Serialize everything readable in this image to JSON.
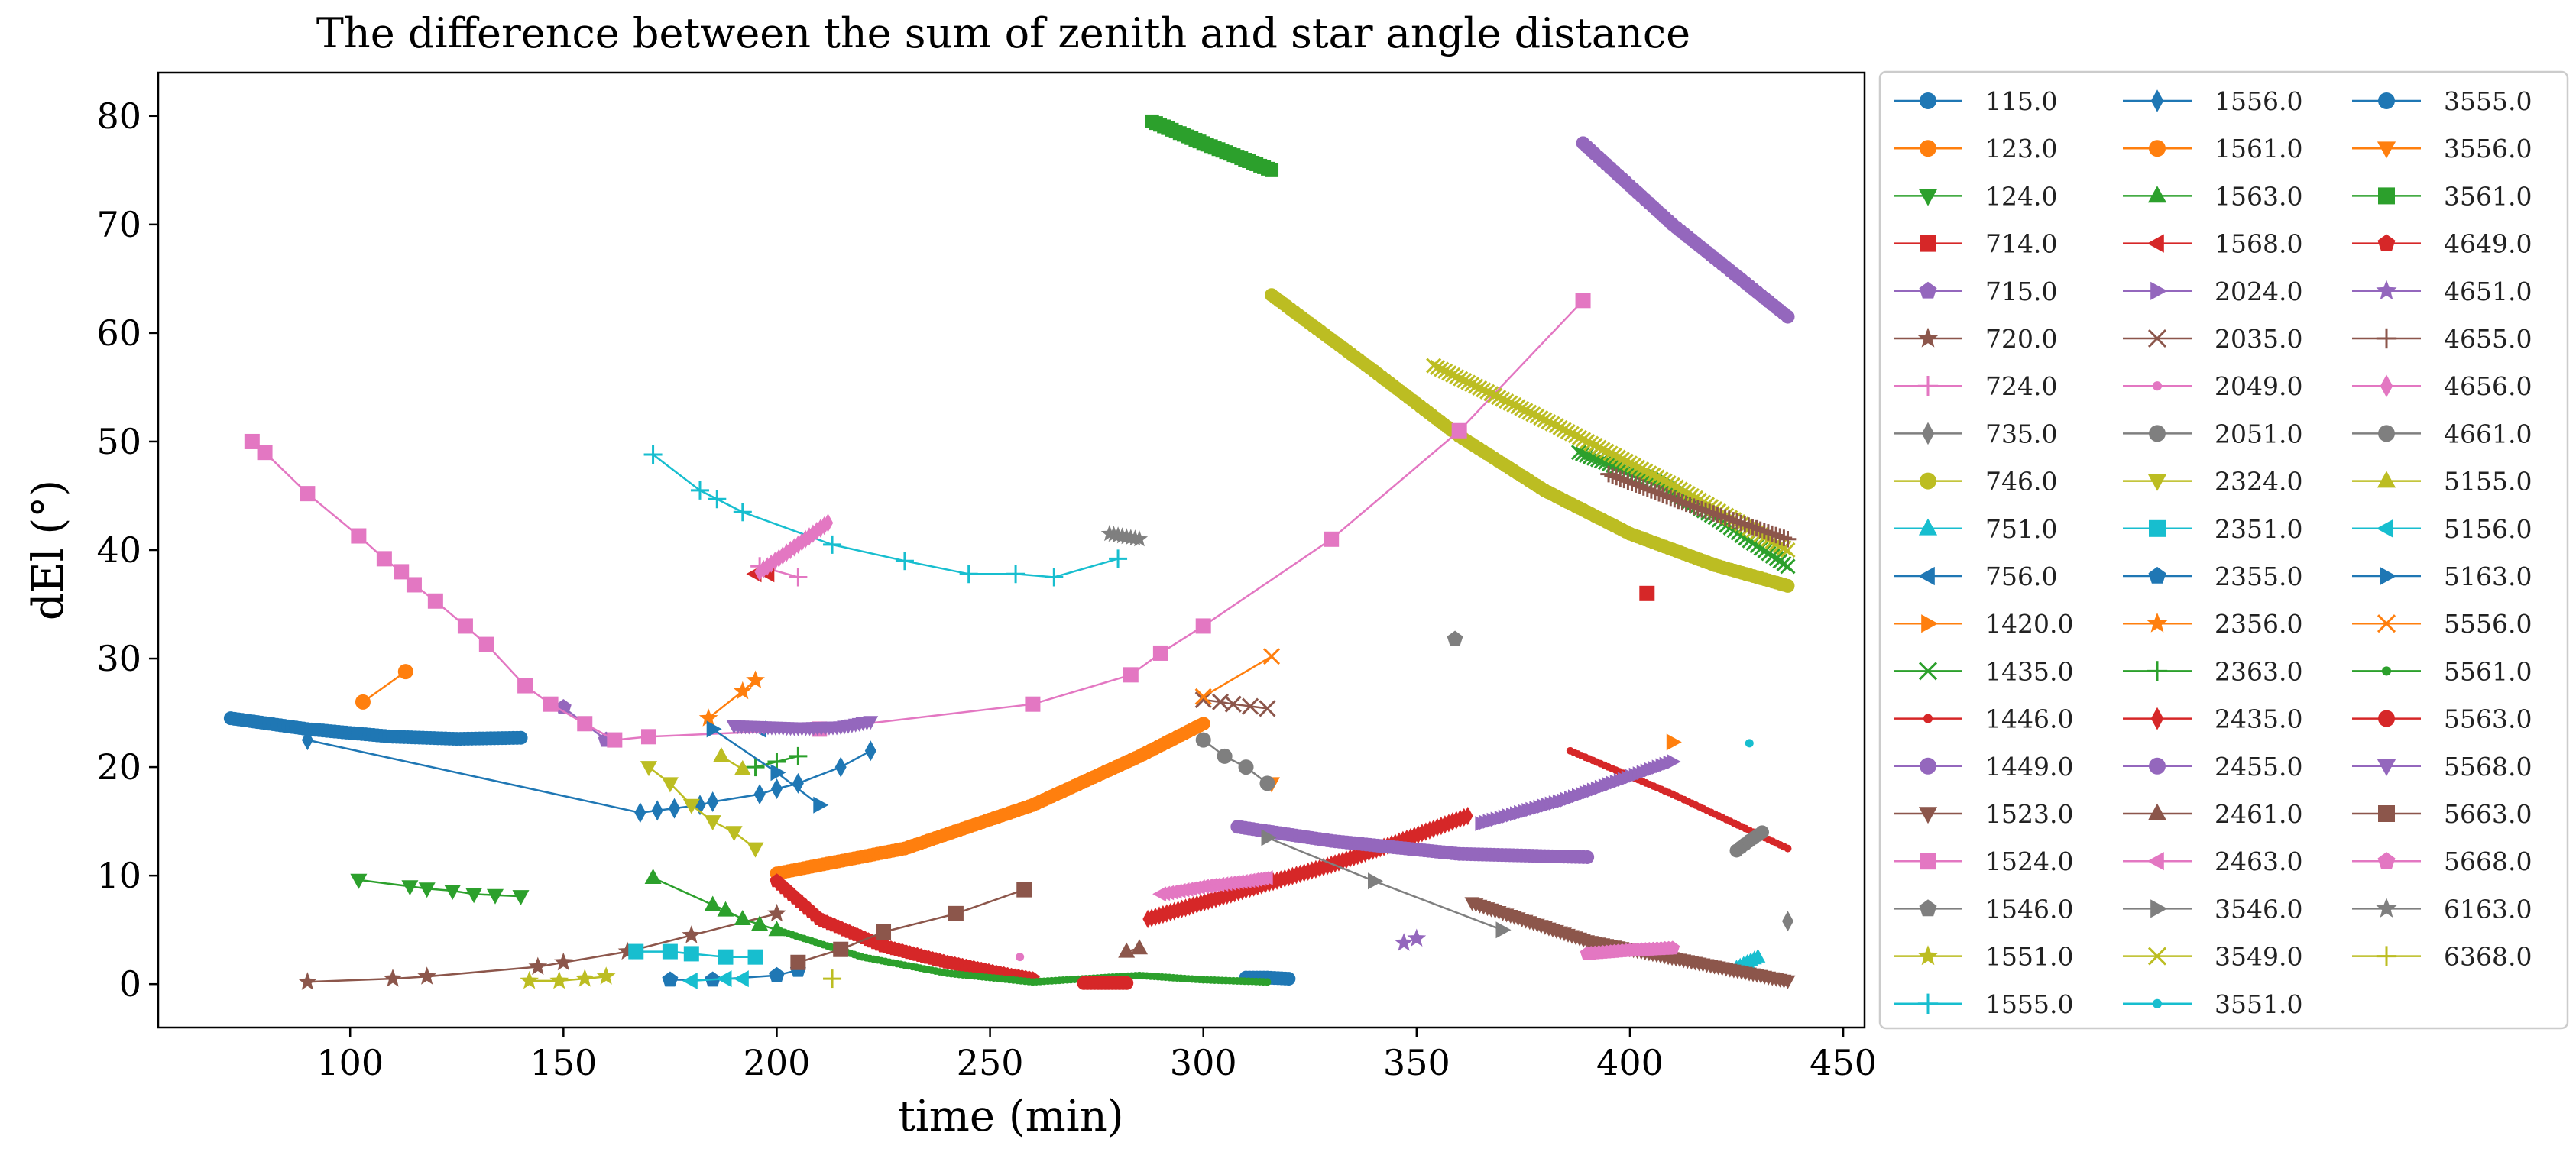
{
  "chart_data": {
    "type": "line",
    "title": "The difference between the sum of zenith and star angle distance",
    "xlabel": "time (min)",
    "ylabel": "dEl (°)",
    "xlim": [
      55,
      455
    ],
    "ylim": [
      -4,
      84
    ],
    "xticks": [
      100,
      150,
      200,
      250,
      300,
      350,
      400,
      450
    ],
    "yticks": [
      0,
      10,
      20,
      30,
      40,
      50,
      60,
      70,
      80
    ],
    "grid": false,
    "legend_placement": "outside-right",
    "series": [
      {
        "name": "115.0",
        "color": "#1f77b4",
        "marker": "o",
        "dense": true,
        "x": [
          72,
          90,
          110,
          125,
          140
        ],
        "y": [
          24.5,
          23.5,
          22.8,
          22.6,
          22.7
        ]
      },
      {
        "name": "123.0",
        "color": "#ff7f0e",
        "marker": "o",
        "dense": false,
        "x": [
          103,
          113
        ],
        "y": [
          26,
          28.8
        ]
      },
      {
        "name": "124.0",
        "color": "#2ca02c",
        "marker": "v",
        "dense": false,
        "x": [
          102,
          114,
          118,
          124,
          129,
          134,
          140
        ],
        "y": [
          9.6,
          9.0,
          8.8,
          8.6,
          8.3,
          8.2,
          8.1
        ]
      },
      {
        "name": "714.0",
        "color": "#d62728",
        "marker": "s",
        "dense": false,
        "x": [
          404
        ],
        "y": [
          36
        ]
      },
      {
        "name": "715.0",
        "color": "#9467bd",
        "marker": "p",
        "dense": false,
        "x": [
          150,
          160
        ],
        "y": [
          25.5,
          22.5
        ]
      },
      {
        "name": "720.0",
        "color": "#8c564b",
        "marker": "*",
        "dense": false,
        "x": [
          90,
          110,
          118,
          144,
          150,
          165,
          180,
          200
        ],
        "y": [
          0.2,
          0.5,
          0.7,
          1.6,
          2.0,
          3.0,
          4.5,
          6.5
        ]
      },
      {
        "name": "724.0",
        "color": "#e377c2",
        "marker": "+",
        "dense": false,
        "x": [
          196,
          205
        ],
        "y": [
          38.5,
          37.5
        ]
      },
      {
        "name": "735.0",
        "color": "#7f7f7f",
        "marker": "d",
        "dense": false,
        "x": [
          437
        ],
        "y": [
          5.8
        ]
      },
      {
        "name": "746.0",
        "color": "#bcbd22",
        "marker": "o",
        "dense": true,
        "x": [
          316,
          340,
          360,
          380,
          400,
          420,
          437
        ],
        "y": [
          63.5,
          56.5,
          50.5,
          45.5,
          41.5,
          38.6,
          36.7
        ]
      },
      {
        "name": "751.0",
        "color": "#17becf",
        "marker": "^",
        "dense": true,
        "x": [
          425,
          430
        ],
        "y": [
          1.5,
          2.5
        ]
      },
      {
        "name": "756.0",
        "color": "#1f77b4",
        "marker": "<",
        "dense": false,
        "x": [
          196
        ],
        "y": [
          23.5
        ]
      },
      {
        "name": "1420.0",
        "color": "#ff7f0e",
        "marker": ">",
        "dense": false,
        "x": [
          410
        ],
        "y": [
          22.3
        ]
      },
      {
        "name": "1435.0",
        "color": "#2ca02c",
        "marker": "x",
        "dense": true,
        "x": [
          388,
          405,
          420,
          437
        ],
        "y": [
          49,
          46.5,
          43,
          38.5
        ]
      },
      {
        "name": "1446.0",
        "color": "#d62728",
        "marker": ".",
        "dense": true,
        "x": [
          386,
          410,
          437
        ],
        "y": [
          21.5,
          17.5,
          12.5
        ]
      },
      {
        "name": "1449.0",
        "color": "#9467bd",
        "marker": "o",
        "dense": true,
        "x": [
          389,
          410,
          437
        ],
        "y": [
          77.5,
          70,
          61.5
        ]
      },
      {
        "name": "1523.0",
        "color": "#8c564b",
        "marker": "v",
        "dense": true,
        "x": [
          363,
          390,
          437
        ],
        "y": [
          7.5,
          4.0,
          0.3
        ]
      },
      {
        "name": "1524.0",
        "color": "#e377c2",
        "marker": "s",
        "dense": false,
        "x": [
          77,
          80,
          90,
          102,
          108,
          112,
          115,
          120,
          127,
          132,
          141,
          147,
          155,
          162,
          170,
          210,
          260,
          283,
          290,
          300,
          330,
          360,
          389
        ],
        "y": [
          50,
          49,
          45.2,
          41.3,
          39.2,
          38,
          36.8,
          35.3,
          33,
          31.3,
          27.5,
          25.8,
          24,
          22.5,
          22.8,
          23.5,
          25.8,
          28.5,
          30.5,
          33,
          41,
          51,
          63
        ]
      },
      {
        "name": "1546.0",
        "color": "#7f7f7f",
        "marker": "p",
        "dense": false,
        "x": [
          359
        ],
        "y": [
          31.8
        ]
      },
      {
        "name": "1551.0",
        "color": "#bcbd22",
        "marker": "*",
        "dense": false,
        "x": [
          142,
          149,
          155,
          160
        ],
        "y": [
          0.3,
          0.3,
          0.5,
          0.7
        ]
      },
      {
        "name": "1555.0",
        "color": "#17becf",
        "marker": "+",
        "dense": false,
        "x": [
          171,
          182,
          186,
          192,
          213,
          230,
          245,
          256,
          265,
          280
        ],
        "y": [
          48.8,
          45.5,
          44.7,
          43.5,
          40.5,
          39,
          37.8,
          37.8,
          37.5,
          39.2
        ]
      },
      {
        "name": "1556.0",
        "color": "#1f77b4",
        "marker": "d",
        "dense": false,
        "x": [
          90,
          168,
          172,
          176,
          182,
          185,
          196,
          200,
          205,
          215,
          222
        ],
        "y": [
          22.5,
          15.8,
          16.0,
          16.2,
          16.5,
          16.8,
          17.5,
          18,
          18.5,
          20,
          21.5
        ]
      },
      {
        "name": "1561.0",
        "color": "#ff7f0e",
        "marker": "o",
        "dense": true,
        "x": [
          200,
          230,
          260,
          285,
          300
        ],
        "y": [
          10.2,
          12.5,
          16.5,
          21.0,
          24.0
        ]
      },
      {
        "name": "1563.0",
        "color": "#2ca02c",
        "marker": "^",
        "dense": false,
        "x": [
          171,
          185,
          188,
          192,
          196,
          200
        ],
        "y": [
          9.8,
          7.3,
          6.8,
          6.0,
          5.5,
          5.0
        ]
      },
      {
        "name": "1568.0",
        "color": "#d62728",
        "marker": "<",
        "dense": false,
        "x": [
          195,
          198
        ],
        "y": [
          37.8,
          37.8
        ]
      },
      {
        "name": "2024.0",
        "color": "#9467bd",
        "marker": ">",
        "dense": true,
        "x": [
          365,
          385,
          410
        ],
        "y": [
          14.8,
          17,
          20.5
        ]
      },
      {
        "name": "2035.0",
        "color": "#8c564b",
        "marker": "x",
        "dense": false,
        "x": [
          300,
          304,
          307,
          311,
          315
        ],
        "y": [
          26.2,
          26.0,
          25.8,
          25.6,
          25.4
        ]
      },
      {
        "name": "2049.0",
        "color": "#e377c2",
        "marker": ".",
        "dense": false,
        "x": [
          257
        ],
        "y": [
          2.5
        ]
      },
      {
        "name": "2051.0",
        "color": "#7f7f7f",
        "marker": "o",
        "dense": true,
        "x": [
          425,
          428,
          431
        ],
        "y": [
          12.3,
          13.2,
          14
        ]
      },
      {
        "name": "2324.0",
        "color": "#bcbd22",
        "marker": "v",
        "dense": false,
        "x": [
          170,
          175,
          180,
          185,
          190,
          195
        ],
        "y": [
          20,
          18.5,
          16.5,
          15,
          14,
          12.5
        ]
      },
      {
        "name": "2351.0",
        "color": "#17becf",
        "marker": "s",
        "dense": false,
        "x": [
          167,
          175,
          180,
          188,
          195
        ],
        "y": [
          3.0,
          3.0,
          2.8,
          2.5,
          2.5
        ]
      },
      {
        "name": "2355.0",
        "color": "#1f77b4",
        "marker": "p",
        "dense": false,
        "x": [
          175,
          185,
          200,
          205
        ],
        "y": [
          0.4,
          0.4,
          0.8,
          1.3
        ]
      },
      {
        "name": "2356.0",
        "color": "#ff7f0e",
        "marker": "*",
        "dense": false,
        "x": [
          184,
          192,
          195
        ],
        "y": [
          24.5,
          27,
          28
        ]
      },
      {
        "name": "2363.0",
        "color": "#2ca02c",
        "marker": "+",
        "dense": false,
        "x": [
          195,
          200,
          205
        ],
        "y": [
          20,
          20.5,
          21
        ]
      },
      {
        "name": "2435.0",
        "color": "#d62728",
        "marker": "d",
        "dense": true,
        "x": [
          287,
          310,
          330,
          345,
          362
        ],
        "y": [
          6.0,
          8.7,
          11,
          13,
          15.5
        ]
      },
      {
        "name": "2455.0",
        "color": "#9467bd",
        "marker": "o",
        "dense": true,
        "x": [
          308,
          330,
          360,
          390
        ],
        "y": [
          14.5,
          13.2,
          12,
          11.7
        ]
      },
      {
        "name": "2461.0",
        "color": "#8c564b",
        "marker": "^",
        "dense": false,
        "x": [
          282,
          285
        ],
        "y": [
          3.0,
          3.3
        ]
      },
      {
        "name": "2463.0",
        "color": "#e377c2",
        "marker": "<",
        "dense": true,
        "x": [
          290,
          300,
          310,
          315
        ],
        "y": [
          8.3,
          9.0,
          9.5,
          9.8
        ]
      },
      {
        "name": "3546.0",
        "color": "#7f7f7f",
        "marker": ">",
        "dense": false,
        "x": [
          315,
          340,
          370
        ],
        "y": [
          13.5,
          9.5,
          5.0
        ]
      },
      {
        "name": "3549.0",
        "color": "#bcbd22",
        "marker": "x",
        "dense": true,
        "x": [
          354,
          380,
          410,
          437
        ],
        "y": [
          57,
          52,
          46,
          40
        ]
      },
      {
        "name": "3551.0",
        "color": "#17becf",
        "marker": ".",
        "dense": false,
        "x": [
          428
        ],
        "y": [
          22.2
        ]
      },
      {
        "name": "3555.0",
        "color": "#1f77b4",
        "marker": "o",
        "dense": true,
        "x": [
          310,
          315,
          320
        ],
        "y": [
          0.6,
          0.6,
          0.5
        ]
      },
      {
        "name": "3556.0",
        "color": "#ff7f0e",
        "marker": "v",
        "dense": false,
        "x": [
          316
        ],
        "y": [
          18.5
        ]
      },
      {
        "name": "3561.0",
        "color": "#2ca02c",
        "marker": "s",
        "dense": true,
        "x": [
          288,
          300,
          316
        ],
        "y": [
          79.5,
          77.5,
          75
        ]
      },
      {
        "name": "4649.0",
        "color": "#d62728",
        "marker": "p",
        "dense": true,
        "x": [
          200,
          210,
          225,
          240,
          255,
          260
        ],
        "y": [
          9.5,
          6.0,
          3.5,
          2.0,
          0.8,
          0.5
        ]
      },
      {
        "name": "4651.0",
        "color": "#9467bd",
        "marker": "*",
        "dense": false,
        "x": [
          347,
          350
        ],
        "y": [
          3.8,
          4.2
        ]
      },
      {
        "name": "4655.0",
        "color": "#8c564b",
        "marker": "+",
        "dense": true,
        "x": [
          395,
          415,
          437
        ],
        "y": [
          47,
          44,
          41
        ]
      },
      {
        "name": "4656.0",
        "color": "#e377c2",
        "marker": "d",
        "dense": true,
        "x": [
          196,
          205,
          212
        ],
        "y": [
          38,
          40.5,
          42.5
        ]
      },
      {
        "name": "4661.0",
        "color": "#7f7f7f",
        "marker": "o",
        "dense": false,
        "x": [
          300,
          305,
          310,
          315
        ],
        "y": [
          22.5,
          21,
          20,
          18.5
        ]
      },
      {
        "name": "5155.0",
        "color": "#bcbd22",
        "marker": "^",
        "dense": false,
        "x": [
          187,
          192
        ],
        "y": [
          21,
          19.8
        ]
      },
      {
        "name": "5156.0",
        "color": "#17becf",
        "marker": "<",
        "dense": false,
        "x": [
          180,
          188,
          192
        ],
        "y": [
          0.3,
          0.5,
          0.5
        ]
      },
      {
        "name": "5163.0",
        "color": "#1f77b4",
        "marker": ">",
        "dense": false,
        "x": [
          185,
          200,
          210
        ],
        "y": [
          23.5,
          19.5,
          16.5
        ]
      },
      {
        "name": "5556.0",
        "color": "#ff7f0e",
        "marker": "x",
        "dense": false,
        "x": [
          300,
          316
        ],
        "y": [
          26.5,
          30.2
        ]
      },
      {
        "name": "5561.0",
        "color": "#2ca02c",
        "marker": ".",
        "dense": true,
        "x": [
          200,
          220,
          240,
          260,
          285,
          300,
          315
        ],
        "y": [
          5.0,
          2.5,
          1.0,
          0.2,
          0.8,
          0.4,
          0.2
        ]
      },
      {
        "name": "5563.0",
        "color": "#d62728",
        "marker": "o",
        "dense": true,
        "x": [
          272,
          277,
          282
        ],
        "y": [
          0.1,
          0.1,
          0.1
        ]
      },
      {
        "name": "5568.0",
        "color": "#9467bd",
        "marker": "v",
        "dense": true,
        "x": [
          190,
          205,
          215,
          222
        ],
        "y": [
          23.8,
          23.6,
          23.7,
          24.2
        ]
      },
      {
        "name": "5663.0",
        "color": "#8c564b",
        "marker": "s",
        "dense": false,
        "x": [
          205,
          215,
          225,
          242,
          258
        ],
        "y": [
          2.0,
          3.2,
          4.8,
          6.5,
          8.7
        ]
      },
      {
        "name": "5668.0",
        "color": "#e377c2",
        "marker": "p",
        "dense": true,
        "x": [
          390,
          400,
          410
        ],
        "y": [
          2.8,
          3.1,
          3.3
        ]
      },
      {
        "name": "6163.0",
        "color": "#7f7f7f",
        "marker": "*",
        "dense": true,
        "x": [
          278,
          282,
          285
        ],
        "y": [
          41.5,
          41.2,
          41
        ]
      },
      {
        "name": "6368.0",
        "color": "#bcbd22",
        "marker": "+",
        "dense": false,
        "x": [
          213
        ],
        "y": [
          0.5
        ]
      }
    ]
  }
}
